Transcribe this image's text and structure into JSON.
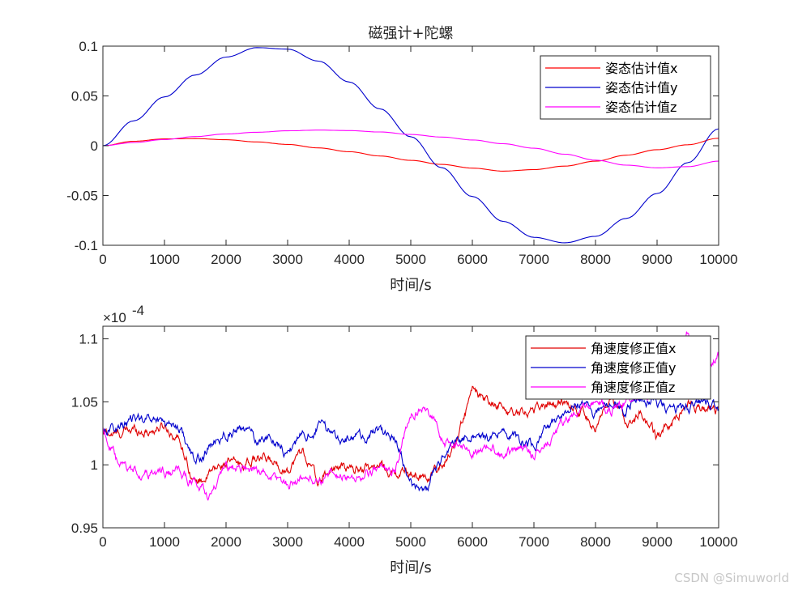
{
  "chart_data": [
    {
      "type": "line",
      "title": "磁强计+陀螺",
      "xlabel": "时间/s",
      "ylabel": "",
      "xlim": [
        0,
        10000
      ],
      "ylim": [
        -0.1,
        0.1
      ],
      "xticks": [
        0,
        1000,
        2000,
        3000,
        4000,
        5000,
        6000,
        7000,
        8000,
        9000,
        10000
      ],
      "xtick_labels": [
        "0",
        "1000",
        "2000",
        "3000",
        "4000",
        "5000",
        "6000",
        "7000",
        "8000",
        "9000",
        "10000"
      ],
      "yticks": [
        -0.1,
        -0.05,
        0,
        0.05,
        0.1
      ],
      "ytick_labels": [
        "-0.1",
        "-0.05",
        "0",
        "0.05",
        "0.1"
      ],
      "legend_position": "top-right",
      "x": [
        0,
        500,
        1000,
        1500,
        2000,
        2500,
        3000,
        3500,
        4000,
        4500,
        5000,
        5500,
        6000,
        6500,
        7000,
        7500,
        8000,
        8500,
        9000,
        9500,
        10000
      ],
      "series": [
        {
          "name": "姿态估计值x",
          "color": "#ff0000",
          "values": [
            0,
            0.0045,
            0.0068,
            0.0072,
            0.006,
            0.0038,
            0.0013,
            -0.0022,
            -0.006,
            -0.0103,
            -0.0147,
            -0.0188,
            -0.0225,
            -0.0255,
            -0.024,
            -0.0205,
            -0.0155,
            -0.0095,
            -0.004,
            0.001,
            0.0075
          ]
        },
        {
          "name": "姿态估计值y",
          "color": "#0000cd",
          "values": [
            0,
            0.025,
            0.049,
            0.071,
            0.089,
            0.0985,
            0.097,
            0.085,
            0.064,
            0.037,
            0.009,
            -0.022,
            -0.051,
            -0.076,
            -0.092,
            -0.0975,
            -0.091,
            -0.073,
            -0.048,
            -0.017,
            0.017
          ]
        },
        {
          "name": "姿态估计值z",
          "color": "#ff00ff",
          "values": [
            0,
            0.0032,
            0.0062,
            0.0092,
            0.0118,
            0.0135,
            0.015,
            0.0157,
            0.0152,
            0.0138,
            0.0113,
            0.0087,
            0.0058,
            0.002,
            -0.0025,
            -0.0085,
            -0.0145,
            -0.0195,
            -0.0222,
            -0.021,
            -0.0155
          ]
        }
      ]
    },
    {
      "type": "line",
      "title": "",
      "xlabel": "时间/s",
      "ylabel": "",
      "exponent_label": "×10",
      "exponent_power": "-4",
      "xlim": [
        0,
        10000
      ],
      "ylim": [
        0.95,
        1.11
      ],
      "xticks": [
        0,
        1000,
        2000,
        3000,
        4000,
        5000,
        6000,
        7000,
        8000,
        9000,
        10000
      ],
      "xtick_labels": [
        "0",
        "1000",
        "2000",
        "3000",
        "4000",
        "5000",
        "6000",
        "7000",
        "8000",
        "9000",
        "10000"
      ],
      "yticks": [
        0.95,
        1,
        1.05,
        1.1
      ],
      "ytick_labels": [
        "0.95",
        "1",
        "1.05",
        "1.1"
      ],
      "legend_position": "top-right",
      "x": [
        0,
        250,
        500,
        750,
        1000,
        1250,
        1500,
        1750,
        2000,
        2250,
        2500,
        2750,
        3000,
        3250,
        3500,
        3750,
        4000,
        4250,
        4500,
        4750,
        5000,
        5250,
        5500,
        5750,
        6000,
        6250,
        6500,
        6750,
        7000,
        7250,
        7500,
        7750,
        8000,
        8250,
        8500,
        8750,
        9000,
        9250,
        9500,
        9750,
        10000
      ],
      "series": [
        {
          "name": "角速度修正值x",
          "color": "#e00000",
          "values": [
            1.025,
            1.024,
            1.028,
            1.027,
            1.031,
            1.02,
            0.985,
            0.993,
            1.002,
            1.0,
            1.005,
            1.002,
            0.997,
            1.012,
            0.985,
            0.998,
            0.996,
            0.998,
            0.999,
            0.992,
            0.994,
            0.99,
            0.998,
            1.02,
            1.058,
            1.048,
            1.045,
            1.04,
            1.045,
            1.048,
            1.05,
            1.045,
            1.03,
            1.048,
            1.035,
            1.04,
            1.02,
            1.035,
            1.05,
            1.045,
            1.045
          ]
        },
        {
          "name": "角速度修正值y",
          "color": "#0000cd",
          "values": [
            1.028,
            1.03,
            1.035,
            1.038,
            1.035,
            1.03,
            1.0,
            1.015,
            1.025,
            1.028,
            1.02,
            1.022,
            1.01,
            1.022,
            1.03,
            1.025,
            1.02,
            1.022,
            1.028,
            1.02,
            0.985,
            0.98,
            1.005,
            1.02,
            1.025,
            1.018,
            1.028,
            1.02,
            1.015,
            1.03,
            1.045,
            1.05,
            1.042,
            1.052,
            1.045,
            1.055,
            1.048,
            1.04,
            1.045,
            1.05,
            1.045
          ]
        },
        {
          "name": "角速度修正值z",
          "color": "#ff00ff",
          "values": [
            1.03,
            0.998,
            0.995,
            0.992,
            0.994,
            0.993,
            0.985,
            0.975,
            0.995,
            0.998,
            0.996,
            0.99,
            0.985,
            0.99,
            0.988,
            0.992,
            0.99,
            0.992,
            0.995,
            0.998,
            1.042,
            1.045,
            1.02,
            1.015,
            1.012,
            1.015,
            1.01,
            1.012,
            1.008,
            1.02,
            1.035,
            1.04,
            1.05,
            1.045,
            1.05,
            1.06,
            1.058,
            1.06,
            1.105,
            1.07,
            1.085
          ]
        }
      ]
    }
  ],
  "watermark": "CSDN @Simuworld"
}
